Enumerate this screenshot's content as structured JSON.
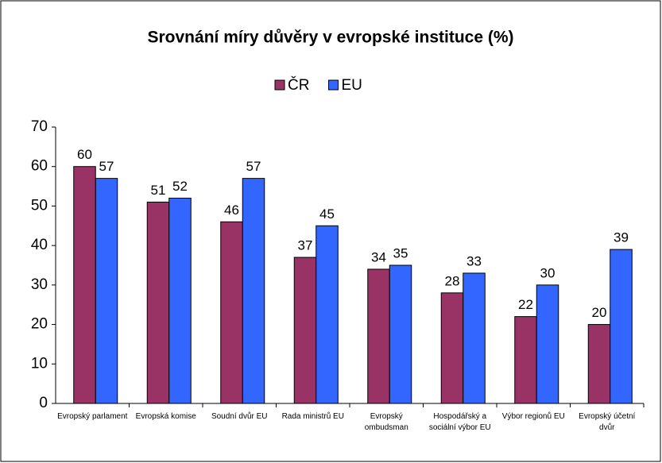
{
  "chart_data": {
    "type": "bar",
    "title": "Srovnání míry důvěry v evropské instituce (%)",
    "categories": [
      "Evropský parlament",
      "Evropská komise",
      "Soudní dvůr EU",
      "Rada ministrů EU",
      "Evropský ombudsman",
      "Hospodářský a sociální výbor EU",
      "Výbor regionů EU",
      "Evropský účetní dvůr"
    ],
    "series": [
      {
        "name": "ČR",
        "color": "#993366",
        "values": [
          60,
          51,
          46,
          37,
          34,
          28,
          22,
          20
        ]
      },
      {
        "name": "EU",
        "color": "#3366ff",
        "values": [
          57,
          52,
          57,
          45,
          35,
          33,
          30,
          39
        ]
      }
    ],
    "ylim": [
      0,
      70
    ],
    "yticks": [
      0,
      10,
      20,
      30,
      40,
      50,
      60,
      70
    ],
    "grid": false,
    "legend": "top"
  }
}
